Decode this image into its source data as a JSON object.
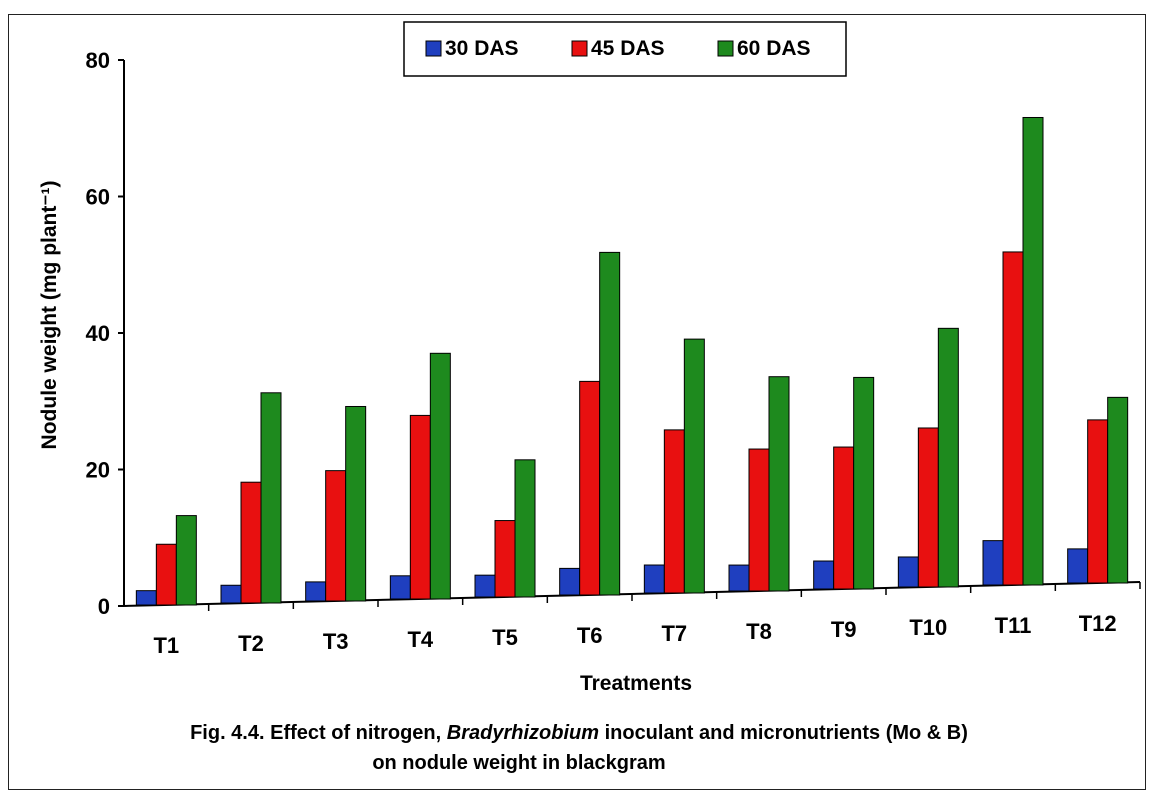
{
  "chart_data": {
    "type": "bar",
    "categories": [
      "T1",
      "T2",
      "T3",
      "T4",
      "T5",
      "T6",
      "T7",
      "T8",
      "T9",
      "T10",
      "T11",
      "T12"
    ],
    "series": [
      {
        "name": "30 DAS",
        "color": "#1f3fbf",
        "values": [
          2.1,
          2.6,
          2.8,
          3.4,
          3.2,
          3.9,
          4.1,
          3.8,
          4.1,
          4.4,
          6.5,
          5.0
        ]
      },
      {
        "name": "45 DAS",
        "color": "#e81010",
        "values": [
          8.9,
          17.7,
          19.1,
          26.9,
          11.2,
          31.3,
          23.9,
          20.8,
          20.8,
          23.3,
          48.8,
          23.9
        ]
      },
      {
        "name": "60 DAS",
        "color": "#1e8a1e",
        "values": [
          13.1,
          30.8,
          28.5,
          36.0,
          20.1,
          50.2,
          37.2,
          31.4,
          31.0,
          37.9,
          68.5,
          27.2
        ]
      }
    ],
    "xlabel": "Treatments",
    "ylabel": "Nodule weight (mg plant⁻¹)",
    "ylim": [
      0,
      80
    ],
    "yticks": [
      "0",
      "20",
      "40",
      "60",
      "80"
    ],
    "grid": false,
    "legend_position": "top-center"
  },
  "caption": {
    "line1_prefix": "Fig. 4.4. Effect of nitrogen, ",
    "line1_italic": "Bradyrhizobium",
    "line1_suffix": " inoculant and micronutrients (Mo & B)",
    "line2": "on nodule weight in blackgram"
  }
}
